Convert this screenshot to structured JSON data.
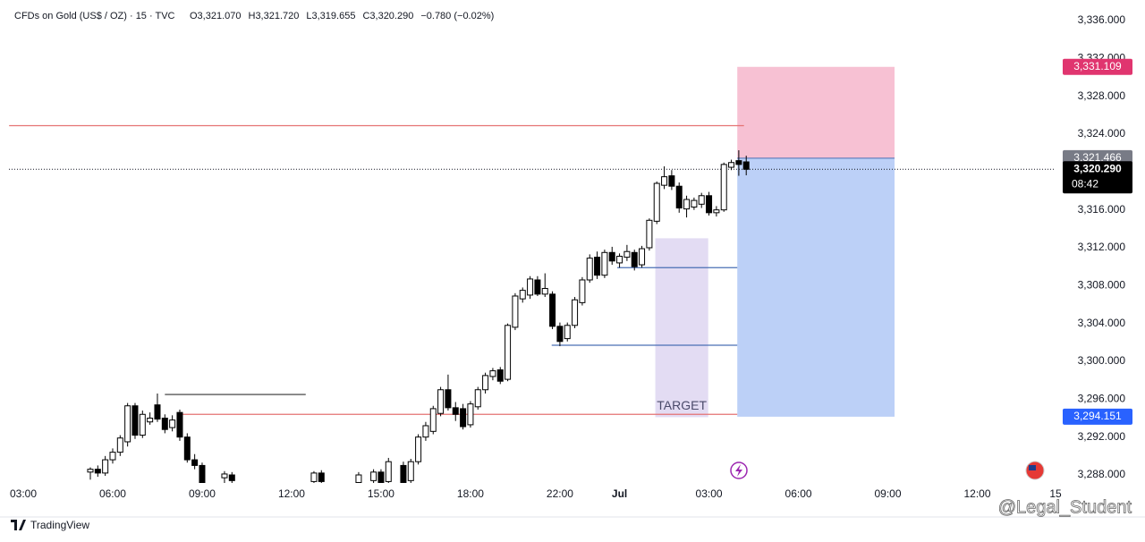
{
  "chart_data": {
    "type": "candlestick",
    "symbol": "CFDs on Gold (US$ / OZ) · 15 · TVC",
    "ohlc_header": [
      "O3,321.070",
      "H3,321.720",
      "L3,319.655",
      "C3,320.290",
      "−0.780 (−0.02%)"
    ],
    "brand": "TradingView",
    "watermark": "@Legal_Student",
    "up_color": "#ffffff",
    "down_color": "#000000",
    "wick_color": "#000000",
    "x": [
      9,
      10,
      11,
      12,
      13,
      14,
      15,
      16,
      17,
      18,
      19,
      20,
      21,
      22,
      23,
      24,
      27,
      28,
      39,
      40,
      45,
      47,
      48,
      49,
      51,
      52,
      53,
      54,
      55,
      56,
      57,
      58,
      59,
      60,
      61,
      62,
      63,
      64,
      65,
      66,
      67,
      68,
      69,
      70,
      71,
      72,
      73,
      74,
      75,
      76,
      77,
      78,
      79,
      80,
      81,
      82,
      83,
      84,
      85,
      86,
      87,
      88,
      89,
      90,
      91,
      92,
      93,
      94,
      95,
      96,
      97
    ],
    "open": [
      3288.3,
      3288.6,
      3288.2,
      3289.6,
      3290.4,
      3291.5,
      3295.3,
      3292.2,
      3293.6,
      3295.4,
      3294,
      3293,
      3294.6,
      3292,
      3289.6,
      3289,
      3287.7,
      3288,
      3287.3,
      3288.2,
      3287.2,
      3287.4,
      3288.3,
      3287.3,
      3289,
      3287.4,
      3289.4,
      3292,
      3292.6,
      3294.5,
      3297,
      3295.1,
      3295,
      3293.3,
      3295.2,
      3297,
      3298.4,
      3299.1,
      3298.1,
      3303.6,
      3306.6,
      3307,
      3308.6,
      3307.1,
      3307.1,
      3303.7,
      3302.4,
      3303.8,
      3306.2,
      3308.6,
      3311,
      3309.1,
      3311.5,
      3310.4,
      3311,
      3311.5,
      3310.2,
      3312,
      3314.8,
      3318.6,
      3319.6,
      3318.5,
      3316.1,
      3316.3,
      3316.6,
      3317.5,
      3315.7,
      3316,
      3320.5,
      3321.2,
      3321.07
    ],
    "high": [
      3288.8,
      3289,
      3290,
      3290.8,
      3292.2,
      3295.6,
      3295.6,
      3294.8,
      3294.6,
      3296.6,
      3294.4,
      3294.3,
      3294.9,
      3292.4,
      3290.2,
      3289.3,
      3288.4,
      3288.3,
      3288.4,
      3288.5,
      3288.3,
      3288.6,
      3288.6,
      3289.8,
      3289.4,
      3289.7,
      3292.3,
      3293.6,
      3295.3,
      3297.3,
      3298.6,
      3295.7,
      3295.5,
      3295.8,
      3297.3,
      3298.8,
      3299.3,
      3299.4,
      3304,
      3307.2,
      3307.8,
      3309,
      3309,
      3309.3,
      3307.4,
      3304.1,
      3304.1,
      3306.8,
      3308.9,
      3311.3,
      3311.6,
      3311.8,
      3312.1,
      3311.4,
      3312.3,
      3311.8,
      3312.2,
      3315.1,
      3319,
      3320.6,
      3320.2,
      3318.9,
      3317.5,
      3317.3,
      3317.8,
      3317.9,
      3316.4,
      3321,
      3321.3,
      3322.3,
      3321.72
    ],
    "low": [
      3287.5,
      3287.8,
      3287.9,
      3289.2,
      3290,
      3291,
      3291.8,
      3291.9,
      3293.3,
      3293.6,
      3292.4,
      3292.6,
      3291.6,
      3289.3,
      3288.6,
      3286.5,
      3287,
      3286.8,
      3286.9,
      3287,
      3286.8,
      3287,
      3286.9,
      3286.9,
      3286.8,
      3287.1,
      3289.1,
      3291.6,
      3292.3,
      3294.2,
      3294.8,
      3293.7,
      3292.8,
      3293,
      3294.9,
      3296.6,
      3298,
      3297.6,
      3297.9,
      3303.3,
      3306.2,
      3306.6,
      3306.9,
      3306.8,
      3303.4,
      3301.6,
      3302.1,
      3303.5,
      3305.9,
      3308.3,
      3308.7,
      3308.8,
      3310.2,
      3309.9,
      3310.6,
      3309.6,
      3309.9,
      3311.7,
      3314.5,
      3318.2,
      3318.1,
      3315.7,
      3315.2,
      3316,
      3316.2,
      3315.4,
      3315.3,
      3315.8,
      3320.2,
      3319.6,
      3319.655
    ],
    "close": [
      3288.6,
      3288.2,
      3289.6,
      3290.4,
      3291.9,
      3295.3,
      3292.2,
      3294.4,
      3294,
      3293.9,
      3292.8,
      3293.8,
      3292,
      3289.6,
      3289,
      3287,
      3288.1,
      3287.4,
      3288.2,
      3287.3,
      3288,
      3288.3,
      3287.2,
      3289.4,
      3287.2,
      3289.4,
      3292,
      3293.2,
      3295,
      3297,
      3295.1,
      3294.4,
      3293.1,
      3295.5,
      3297,
      3298.5,
      3299,
      3297.9,
      3303.8,
      3306.9,
      3307.5,
      3308.7,
      3307.1,
      3307.7,
      3303.7,
      3302.1,
      3303.8,
      3306.5,
      3308.6,
      3310.9,
      3309.1,
      3311.5,
      3310.6,
      3311.1,
      3311.6,
      3310,
      3311.9,
      3314.9,
      3318.8,
      3319.5,
      3318.5,
      3316.2,
      3317.1,
      3317,
      3317.5,
      3315.7,
      3316,
      3320.8,
      3321,
      3320.8,
      3320.29
    ],
    "xlim": [
      -1.92,
      138.5
    ],
    "ylim": [
      3287.15,
      3337.7
    ],
    "xticks": [
      {
        "value": 0,
        "label": "03:00"
      },
      {
        "value": 12,
        "label": "06:00"
      },
      {
        "value": 24,
        "label": "09:00"
      },
      {
        "value": 36,
        "label": "12:00"
      },
      {
        "value": 48,
        "label": "15:00"
      },
      {
        "value": 60,
        "label": "18:00"
      },
      {
        "value": 72,
        "label": "22:00"
      },
      {
        "value": 80,
        "label": "Jul"
      },
      {
        "value": 92,
        "label": "03:00"
      },
      {
        "value": 104,
        "label": "06:00"
      },
      {
        "value": 116,
        "label": "09:00"
      },
      {
        "value": 128,
        "label": "12:00"
      },
      {
        "value": 138.5,
        "label": "15"
      }
    ],
    "yticks": [
      {
        "value": 3288,
        "label": "3,288.000"
      },
      {
        "value": 3292,
        "label": "3,292.000"
      },
      {
        "value": 3296,
        "label": "3,296.000"
      },
      {
        "value": 3300,
        "label": "3,300.000"
      },
      {
        "value": 3304,
        "label": "3,304.000"
      },
      {
        "value": 3308,
        "label": "3,308.000"
      },
      {
        "value": 3312,
        "label": "3,312.000"
      },
      {
        "value": 3316,
        "label": "3,316.000"
      },
      {
        "value": 3320,
        "label": "3,320.000"
      },
      {
        "value": 3324,
        "label": "3,324.000"
      },
      {
        "value": 3328,
        "label": "3,328.000"
      },
      {
        "value": 3332,
        "label": "3,332.000"
      },
      {
        "value": 3336,
        "label": "3,336.000"
      }
    ],
    "lines": [
      {
        "price": 3324.9,
        "x0": -1.9,
        "x1": 96.7,
        "color": "#e57373"
      },
      {
        "price": 3294.4,
        "x0": 20.9,
        "x1": 95.8,
        "color": "#e57373"
      },
      {
        "price": 3296.5,
        "x0": 19,
        "x1": 37.9,
        "color": "#333333"
      },
      {
        "price": 3309.9,
        "x0": 79.7,
        "x1": 95.8,
        "color": "#4a6fb5"
      },
      {
        "price": 3301.7,
        "x0": 70.9,
        "x1": 95.8,
        "color": "#4a6fb5"
      }
    ],
    "zones": [
      {
        "top": 3331.109,
        "bottom": 3321.466,
        "x0": 95.8,
        "x1": 116.9,
        "color": "#f7c1d3"
      },
      {
        "top": 3321.466,
        "bottom": 3294.151,
        "x0": 95.8,
        "x1": 116.9,
        "color": "#bcd0f7"
      },
      {
        "top": 3313.0,
        "bottom": 3294.1,
        "x0": 84.8,
        "x1": 91.9,
        "color": "#e3dcf3",
        "label": "TARGET"
      }
    ],
    "price_labels": [
      {
        "value": 3331.109,
        "label": "3,331.109",
        "color": "#e0356f"
      },
      {
        "value": 3321.466,
        "label": "3,321.466",
        "color": "#787b86"
      },
      {
        "value": 3294.151,
        "label": "3,294.151",
        "color": "#2962ff"
      }
    ],
    "current_price": {
      "value": 3320.29,
      "label": "3,320.290",
      "countdown": "08:42"
    }
  }
}
